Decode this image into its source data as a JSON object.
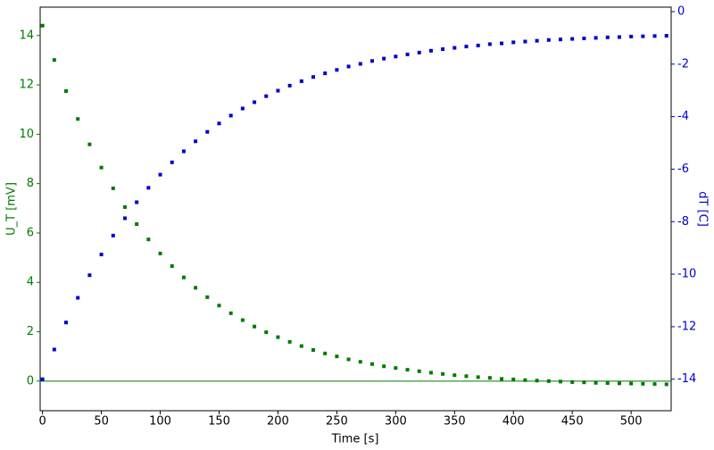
{
  "chart_data": {
    "type": "scatter",
    "xlabel": "Time [s]",
    "ylabel": "U_T [mV]",
    "y2label": "dT [C]",
    "x": [
      0,
      10,
      20,
      30,
      40,
      50,
      60,
      70,
      80,
      90,
      100,
      110,
      120,
      130,
      140,
      150,
      160,
      170,
      180,
      190,
      200,
      210,
      220,
      230,
      240,
      250,
      260,
      270,
      280,
      290,
      300,
      310,
      320,
      330,
      340,
      350,
      360,
      370,
      380,
      390,
      400,
      410,
      420,
      430,
      440,
      450,
      460,
      470,
      480,
      490,
      500,
      510,
      520,
      530
    ],
    "series": [
      {
        "name": "U_T",
        "color": "#007a00",
        "axis": "y",
        "values": [
          14.4,
          13.01,
          11.75,
          10.62,
          9.59,
          8.65,
          7.81,
          7.05,
          6.36,
          5.74,
          5.17,
          4.66,
          4.2,
          3.78,
          3.4,
          3.06,
          2.75,
          2.47,
          2.21,
          1.98,
          1.78,
          1.59,
          1.42,
          1.26,
          1.12,
          1.0,
          0.88,
          0.78,
          0.69,
          0.6,
          0.53,
          0.46,
          0.4,
          0.34,
          0.29,
          0.24,
          0.2,
          0.16,
          0.13,
          0.09,
          0.07,
          0.04,
          0.02,
          0.0,
          -0.02,
          -0.04,
          -0.05,
          -0.07,
          -0.08,
          -0.09,
          -0.1,
          -0.11,
          -0.12,
          -0.13
        ]
      },
      {
        "name": "dT",
        "color": "#0000cc",
        "axis": "y2",
        "values": [
          -14.0,
          -12.87,
          -11.84,
          -10.9,
          -10.04,
          -9.25,
          -8.53,
          -7.87,
          -7.26,
          -6.71,
          -6.21,
          -5.74,
          -5.32,
          -4.94,
          -4.58,
          -4.26,
          -3.96,
          -3.69,
          -3.45,
          -3.22,
          -3.01,
          -2.82,
          -2.65,
          -2.49,
          -2.35,
          -2.22,
          -2.09,
          -1.99,
          -1.88,
          -1.79,
          -1.71,
          -1.63,
          -1.56,
          -1.49,
          -1.43,
          -1.38,
          -1.33,
          -1.29,
          -1.24,
          -1.21,
          -1.17,
          -1.14,
          -1.11,
          -1.08,
          -1.06,
          -1.04,
          -1.02,
          -1.0,
          -0.98,
          -0.97,
          -0.95,
          -0.94,
          -0.93,
          -0.92
        ]
      }
    ],
    "reference_line": {
      "y": 0,
      "color": "#007a00"
    },
    "xlim": [
      -2,
      534
    ],
    "ylim": [
      -1.2,
      15.15
    ],
    "y2lim": [
      -15.2,
      0.17
    ],
    "xticks": [
      0,
      50,
      100,
      150,
      200,
      250,
      300,
      350,
      400,
      450,
      500
    ],
    "yticks": [
      0,
      2,
      4,
      6,
      8,
      10,
      12,
      14
    ],
    "y2ticks": [
      -14,
      -12,
      -10,
      -8,
      -6,
      -4,
      -2,
      0
    ],
    "grid": false
  }
}
